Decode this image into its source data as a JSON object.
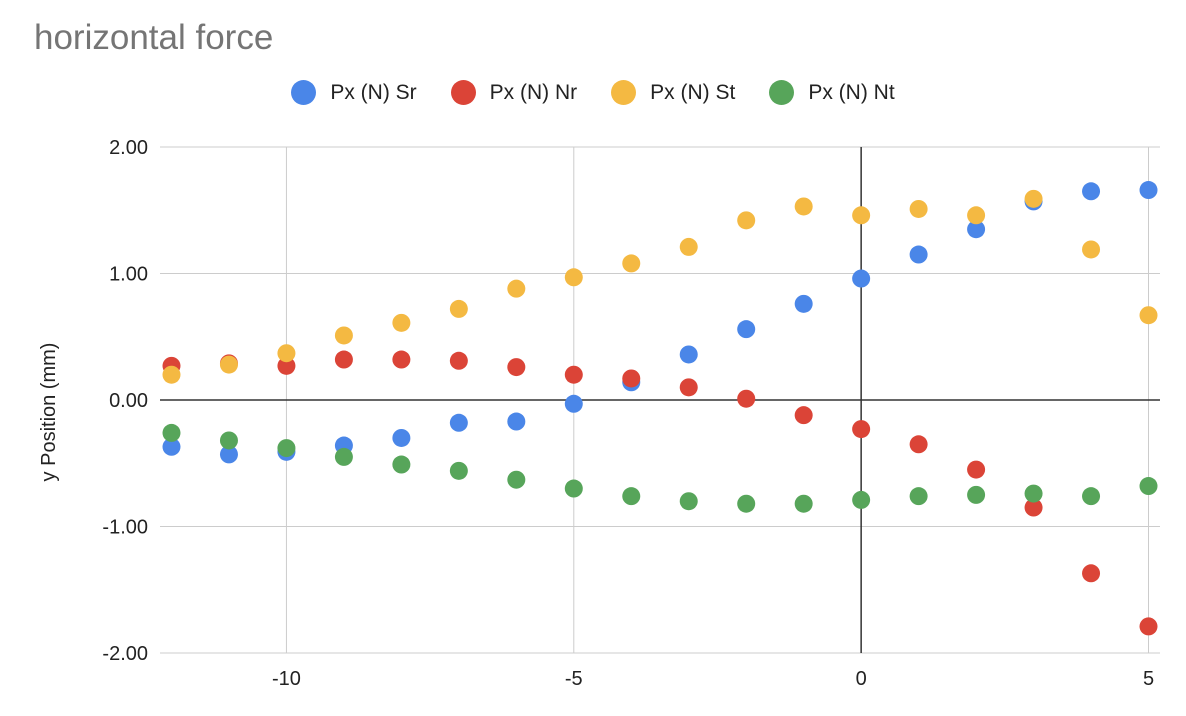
{
  "chart_data": {
    "type": "scatter",
    "title": "horizontal force",
    "xlabel": "",
    "ylabel": "y Position (mm)",
    "xlim": [
      -12.2,
      5.2
    ],
    "ylim": [
      -2,
      2
    ],
    "x_ticks": [
      -10,
      -5,
      0,
      5
    ],
    "x_tick_labels": [
      "-10",
      "-5",
      "0",
      "5"
    ],
    "y_ticks": [
      2,
      1,
      0,
      -1,
      -2
    ],
    "y_tick_labels": [
      "2.00",
      "1.00",
      "0.00",
      "-1.00",
      "-2.00"
    ],
    "grid": true,
    "legend_position": "top",
    "x": [
      -12,
      -11,
      -10,
      -9,
      -8,
      -7,
      -6,
      -5,
      -4,
      -3,
      -2,
      -1,
      0,
      1,
      2,
      3,
      4,
      5
    ],
    "series": [
      {
        "name": "Px (N) Sr",
        "color": "#4a86e8",
        "values": [
          -0.37,
          -0.43,
          -0.41,
          -0.36,
          -0.3,
          -0.18,
          -0.17,
          -0.03,
          0.14,
          0.36,
          0.56,
          0.76,
          0.96,
          1.15,
          1.35,
          1.57,
          1.65,
          1.66
        ]
      },
      {
        "name": "Px (N) Nr",
        "color": "#db4437",
        "values": [
          0.27,
          0.29,
          0.27,
          0.32,
          0.32,
          0.31,
          0.26,
          0.2,
          0.17,
          0.1,
          0.01,
          -0.12,
          -0.23,
          -0.35,
          -0.55,
          -0.85,
          -1.37,
          -1.79
        ]
      },
      {
        "name": "Px (N) St",
        "color": "#f4b942",
        "values": [
          0.2,
          0.28,
          0.37,
          0.51,
          0.61,
          0.72,
          0.88,
          0.97,
          1.08,
          1.21,
          1.42,
          1.53,
          1.46,
          1.51,
          1.46,
          1.59,
          1.19,
          0.67
        ]
      },
      {
        "name": "Px (N) Nt",
        "color": "#57a55a",
        "values": [
          -0.26,
          -0.32,
          -0.38,
          -0.45,
          -0.51,
          -0.56,
          -0.63,
          -0.7,
          -0.76,
          -0.8,
          -0.82,
          -0.82,
          -0.79,
          -0.76,
          -0.75,
          -0.74,
          -0.76,
          -0.68
        ]
      }
    ]
  }
}
